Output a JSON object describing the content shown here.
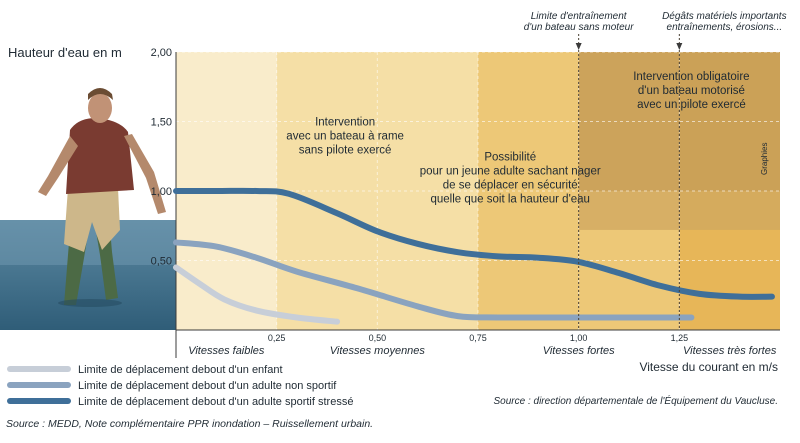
{
  "chart_data": {
    "type": "line",
    "title": "Hauteur d'eau en m",
    "ylabel": "Hauteur d'eau en m",
    "xlabel": "Vitesse du courant en m/s",
    "xlim": [
      0,
      1.5
    ],
    "ylim": [
      0,
      2.0
    ],
    "x_ticks": [
      "0,25",
      "0,50",
      "0,75",
      "1,00",
      "1,25"
    ],
    "x_tick_values": [
      0.25,
      0.5,
      0.75,
      1.0,
      1.25
    ],
    "y_ticks": [
      "0,50",
      "1,00",
      "1,50",
      "2,00"
    ],
    "y_tick_values": [
      0.5,
      1.0,
      1.5,
      2.0
    ],
    "speed_bands": [
      {
        "label": "Vitesses faibles",
        "from": 0,
        "to": 0.25,
        "color": "#f9eccb"
      },
      {
        "label": "Vitesses moyennes",
        "from": 0.25,
        "to": 0.75,
        "color": "#f5dfa6"
      },
      {
        "label": "Vitesses fortes",
        "from": 0.75,
        "to": 1.25,
        "color": "#edc877"
      },
      {
        "label": "Vitesses très fortes",
        "from": 1.25,
        "to": 1.5,
        "color": "#e7b658"
      }
    ],
    "zones": [
      {
        "text": [
          "Intervention",
          "avec un bateau à rame",
          "sans pilote exercé"
        ],
        "x": 0.42,
        "y": 1.47
      },
      {
        "text": [
          "Possibilité",
          "pour un jeune adulte sachant nager",
          "de se déplacer en sécurité",
          "quelle que soit la hauteur d'eau"
        ],
        "x": 0.83,
        "y": 1.22
      },
      {
        "text": [
          "Intervention obligatoire",
          "d'un bateau motorisé",
          "avec un pilote exercé"
        ],
        "x": 1.28,
        "y": 1.8
      }
    ],
    "markers": [
      {
        "x": 1.0,
        "label": [
          "Limite d'entraînement",
          "d'un bateau sans moteur"
        ]
      },
      {
        "x": 1.25,
        "label": [
          "Dégâts matériels importants",
          "entraînements, érosions..."
        ]
      }
    ],
    "series": [
      {
        "name": "Limite de déplacement debout d'un enfant",
        "color": "#c7ced8",
        "x": [
          0,
          0.06,
          0.12,
          0.2,
          0.3,
          0.4
        ],
        "y": [
          0.45,
          0.33,
          0.22,
          0.14,
          0.09,
          0.06
        ]
      },
      {
        "name": "Limite de déplacement debout d'un adulte non sportif",
        "color": "#8aa3bf",
        "x": [
          0,
          0.1,
          0.2,
          0.3,
          0.45,
          0.6,
          0.7,
          0.8,
          1.0,
          1.2,
          1.28
        ],
        "y": [
          0.63,
          0.6,
          0.52,
          0.42,
          0.3,
          0.17,
          0.1,
          0.09,
          0.09,
          0.09,
          0.09
        ]
      },
      {
        "name": "Limite de déplacement debout d'un adulte sportif stressé",
        "color": "#3f6f99",
        "x": [
          0,
          0.1,
          0.2,
          0.28,
          0.4,
          0.5,
          0.6,
          0.7,
          0.8,
          0.9,
          1.0,
          1.1,
          1.2,
          1.3,
          1.4,
          1.48
        ],
        "y": [
          1.0,
          1.0,
          1.0,
          0.98,
          0.84,
          0.71,
          0.62,
          0.56,
          0.53,
          0.52,
          0.49,
          0.41,
          0.32,
          0.26,
          0.24,
          0.24
        ]
      }
    ]
  },
  "legend": [
    {
      "label": "Limite de déplacement debout d'un enfant",
      "color": "#c7ced8"
    },
    {
      "label": "Limite de déplacement debout d'un adulte non sportif",
      "color": "#8aa3bf"
    },
    {
      "label": "Limite de déplacement debout d'un adulte sportif stressé",
      "color": "#3f6f99"
    }
  ],
  "source_right": "Source : direction départementale de l'Équipement du Vaucluse.",
  "source_bottom": "Source :  MEDD, Note complémentaire PPR inondation – Ruissellement urbain.",
  "credit": "Graphies"
}
